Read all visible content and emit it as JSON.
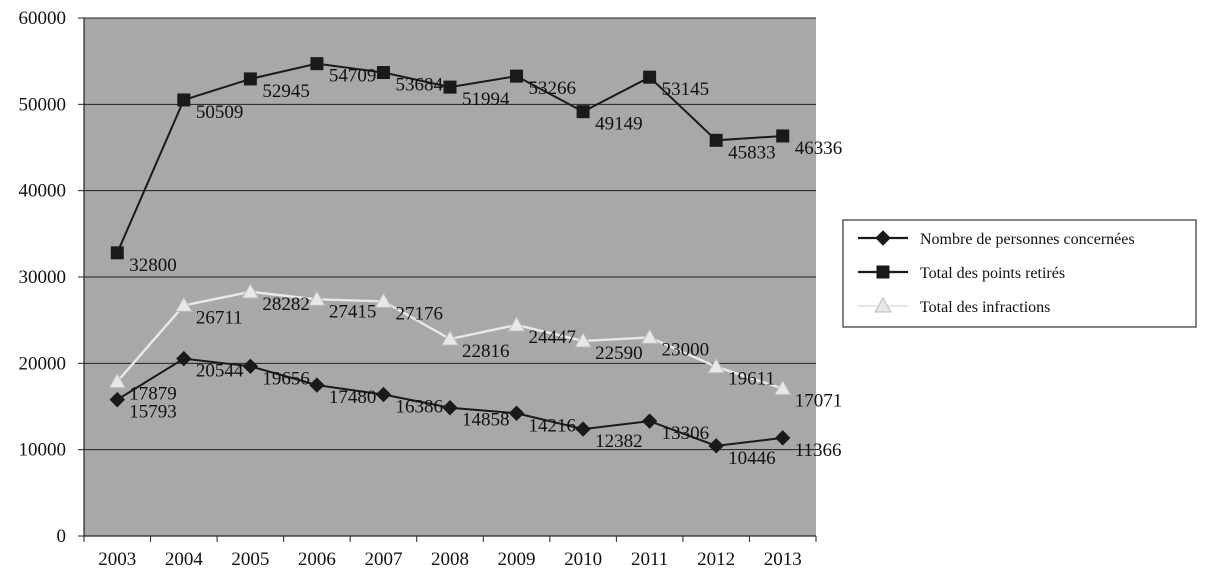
{
  "chart_data": {
    "type": "line",
    "title": "",
    "xlabel": "",
    "ylabel": "",
    "x": [
      "2003",
      "2004",
      "2005",
      "2006",
      "2007",
      "2008",
      "2009",
      "2010",
      "2011",
      "2012",
      "2013"
    ],
    "ylim": [
      0,
      60000
    ],
    "yticks": [
      "0",
      "10000",
      "20000",
      "30000",
      "40000",
      "50000",
      "60000"
    ],
    "grid": true,
    "plot_background": "#a8a8a8",
    "legend_position": "right",
    "series": [
      {
        "name": "Nombre de personnes concernées",
        "marker": "diamond",
        "color": "#1a1a1a",
        "values": [
          15793,
          20544,
          19656,
          17480,
          16386,
          14858,
          14216,
          12382,
          13306,
          10446,
          11366
        ],
        "labels": [
          "15793",
          "20544",
          "19656",
          "17480",
          "16386",
          "14858",
          "14216",
          "12382",
          "13306",
          "10446",
          "11366"
        ]
      },
      {
        "name": "Total des points retirés",
        "marker": "square",
        "color": "#1a1a1a",
        "values": [
          32800,
          50509,
          52945,
          54709,
          53684,
          51994,
          53266,
          49149,
          53145,
          45833,
          46336
        ],
        "labels": [
          "32800",
          "50509",
          "52945",
          "54709",
          "53684",
          "51994",
          "53266",
          "49149",
          "53145",
          "45833",
          "46336"
        ]
      },
      {
        "name": "Total des infractions",
        "marker": "triangle",
        "color": "#e8e8e8",
        "values": [
          17879,
          26711,
          28282,
          27415,
          27176,
          22816,
          24447,
          22590,
          23000,
          19611,
          17071
        ],
        "labels": [
          "17879",
          "26711",
          "28282",
          "27415",
          "27176",
          "22816",
          "24447",
          "22590",
          "23000",
          "19611",
          "17071"
        ]
      }
    ]
  }
}
